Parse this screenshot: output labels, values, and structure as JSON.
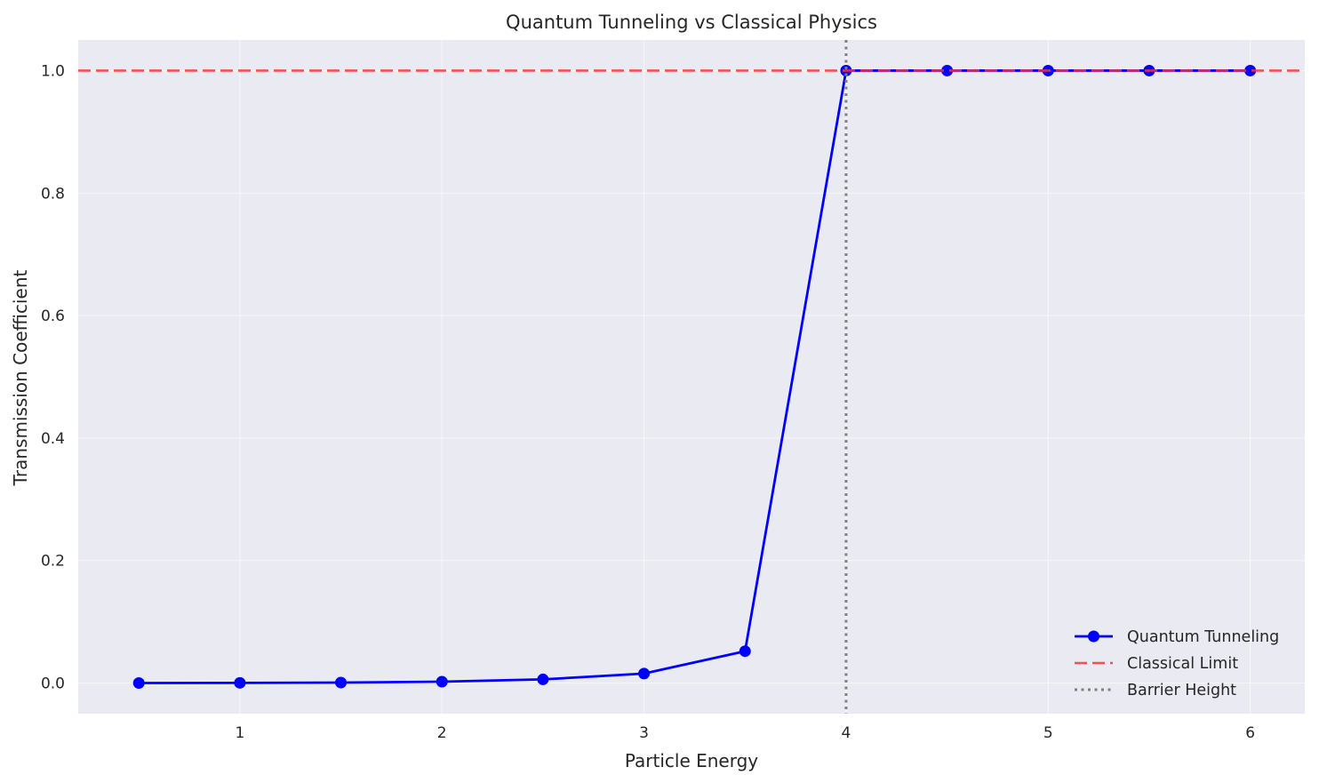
{
  "chart_data": {
    "type": "line",
    "title": "Quantum Tunneling vs Classical Physics",
    "xlabel": "Particle Energy",
    "ylabel": "Transmission Coefficient",
    "xlim": [
      0.2,
      6.27
    ],
    "ylim": [
      -0.05,
      1.05
    ],
    "xticks": [
      1,
      2,
      3,
      4,
      5,
      6
    ],
    "xtick_labels": [
      "1",
      "2",
      "3",
      "4",
      "5",
      "6"
    ],
    "yticks": [
      0.0,
      0.2,
      0.4,
      0.6,
      0.8,
      1.0
    ],
    "ytick_labels": [
      "0.0",
      "0.2",
      "0.4",
      "0.6",
      "0.8",
      "1.0"
    ],
    "grid": true,
    "legend_position": "lower-right",
    "series": [
      {
        "name": "Quantum Tunneling",
        "style": "solid-line-with-circle-markers",
        "color": "#0000ff",
        "x": [
          0.5,
          1.0,
          1.5,
          2.0,
          2.5,
          3.0,
          3.5,
          4.0,
          4.5,
          5.0,
          5.5,
          6.0
        ],
        "y": [
          0.0001,
          0.0003,
          0.0008,
          0.0022,
          0.006,
          0.0155,
          0.052,
          1.0,
          1.0,
          1.0,
          1.0,
          1.0
        ]
      }
    ],
    "reference_lines": [
      {
        "name": "Classical Limit",
        "orientation": "horizontal",
        "value": 1.0,
        "style": "dashed",
        "color": "#ff3333"
      },
      {
        "name": "Barrier Height",
        "orientation": "vertical",
        "value": 4.0,
        "style": "dotted",
        "color": "#808080"
      }
    ],
    "legend": [
      {
        "label": "Quantum Tunneling",
        "kind": "line-marker",
        "color": "#0000ff"
      },
      {
        "label": "Classical Limit",
        "kind": "dashed",
        "color": "#ff3333"
      },
      {
        "label": "Barrier Height",
        "kind": "dotted",
        "color": "#808080"
      }
    ]
  }
}
